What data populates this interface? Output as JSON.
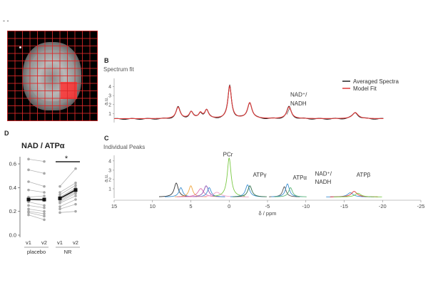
{
  "figure": {
    "top_marker": "- -",
    "panel_b_letter": "B",
    "panel_c_letter": "C",
    "panel_d_letter": "D"
  },
  "colors": {
    "averaged": "#222222",
    "model": "#e03a3a",
    "voxel": "#ff3232"
  },
  "chart_data": [
    {
      "id": "spectrum-fit",
      "type": "line",
      "title": "Spectrum fit",
      "ylabel": "a.u.",
      "xlim": [
        15,
        -20
      ],
      "ylim": [
        0,
        4.6
      ],
      "yticks": [
        1,
        2,
        3,
        4
      ],
      "legend": {
        "position": "top-right",
        "entries": [
          "Averaged Spectra",
          "Model Fit"
        ]
      },
      "annotations": [
        {
          "text_line1": "NAD⁺/",
          "text_line2": "NADH",
          "x": -7.5,
          "y": 2.2
        }
      ],
      "peaks": [
        {
          "ppm": 6.7,
          "h": 1.3,
          "w": 0.32
        },
        {
          "ppm": 5.0,
          "h": 0.75,
          "w": 0.3
        },
        {
          "ppm": 3.8,
          "h": 0.6,
          "w": 0.28
        },
        {
          "ppm": 3.0,
          "h": 0.95,
          "w": 0.3
        },
        {
          "ppm": 0.0,
          "h": 3.7,
          "w": 0.28
        },
        {
          "ppm": -2.6,
          "h": 1.8,
          "w": 0.35
        },
        {
          "ppm": -7.7,
          "h": 1.35,
          "w": 0.35
        },
        {
          "ppm": -16.3,
          "h": 0.7,
          "w": 0.45
        }
      ],
      "baseline": 0.4,
      "series": [
        {
          "name": "Averaged Spectra"
        },
        {
          "name": "Model Fit"
        }
      ]
    },
    {
      "id": "individual-peaks",
      "type": "line",
      "title": "Individual Peaks",
      "ylabel": "a.u.",
      "xlabel": "δ / ppm",
      "xlim": [
        15,
        -25
      ],
      "xticks": [
        15,
        10,
        5,
        0,
        -5,
        -10,
        -15,
        -20,
        -25
      ],
      "ylim": [
        0,
        4.6
      ],
      "yticks": [
        1,
        2,
        3,
        4
      ],
      "peak_labels": [
        {
          "text": "PCr",
          "x": 0.8,
          "y": 4.5
        },
        {
          "text": "ATPγ",
          "x": -3.1,
          "y": 2.3
        },
        {
          "text": "ATPα",
          "x": -8.3,
          "y": 2.0
        },
        {
          "text": "NAD⁺/",
          "x": -11.2,
          "y": 2.4
        },
        {
          "text": "NADH",
          "x": -11.2,
          "y": 1.55
        },
        {
          "text": "ATPβ",
          "x": -16.6,
          "y": 2.3
        }
      ],
      "series": [
        {
          "ppm": 6.9,
          "h": 1.5,
          "w": 0.32,
          "color": "#333333"
        },
        {
          "ppm": 6.3,
          "h": 1.0,
          "w": 0.3,
          "color": "#3b8fd1"
        },
        {
          "ppm": 5.0,
          "h": 1.2,
          "w": 0.3,
          "color": "#f0a640"
        },
        {
          "ppm": 3.7,
          "h": 0.9,
          "w": 0.45,
          "color": "#e06fae"
        },
        {
          "ppm": 3.0,
          "h": 1.2,
          "w": 0.35,
          "color": "#8a4fb3"
        },
        {
          "ppm": 2.6,
          "h": 1.0,
          "w": 0.3,
          "color": "#3b8fd1"
        },
        {
          "ppm": 1.6,
          "h": 0.5,
          "w": 0.6,
          "color": "#f1a0c8"
        },
        {
          "ppm": 0.0,
          "h": 4.2,
          "w": 0.3,
          "color": "#7ac943"
        },
        {
          "ppm": -2.4,
          "h": 1.3,
          "w": 0.32,
          "color": "#3b8fd1"
        },
        {
          "ppm": -2.7,
          "h": 1.2,
          "w": 0.32,
          "color": "#2f6e4a"
        },
        {
          "ppm": -7.2,
          "h": 1.1,
          "w": 0.28,
          "color": "#555555"
        },
        {
          "ppm": -7.6,
          "h": 1.4,
          "w": 0.3,
          "color": "#3b8fd1"
        },
        {
          "ppm": -8.0,
          "h": 1.0,
          "w": 0.3,
          "color": "#5cb57a"
        },
        {
          "ppm": -15.8,
          "h": 0.45,
          "w": 0.45,
          "color": "#3b8fd1"
        },
        {
          "ppm": -16.3,
          "h": 0.6,
          "w": 0.45,
          "color": "#e03a3a"
        },
        {
          "ppm": -16.8,
          "h": 0.4,
          "w": 0.45,
          "color": "#7ac943"
        }
      ]
    },
    {
      "id": "nad-atp-ratio",
      "type": "scatter",
      "title": "NAD / ATPα",
      "ylim": [
        0.0,
        0.6
      ],
      "yticks": [
        "0.0",
        "0.2",
        "0.4",
        "0.6"
      ],
      "ytick_values": [
        0.0,
        0.2,
        0.4,
        0.6
      ],
      "x_ticks": [
        "v1",
        "v2",
        "v1",
        "v2"
      ],
      "groups": [
        "placebo",
        "NR"
      ],
      "significance": "*",
      "placebo": {
        "v1": [
          0.64,
          0.55,
          0.45,
          0.38,
          0.32,
          0.3,
          0.28,
          0.25,
          0.22,
          0.2,
          0.19,
          0.17
        ],
        "v2": [
          0.62,
          0.52,
          0.41,
          0.36,
          0.33,
          0.29,
          0.25,
          0.23,
          0.2,
          0.18,
          0.16,
          0.13
        ],
        "mean": [
          0.3,
          0.3
        ]
      },
      "nr": {
        "v1": [
          0.41,
          0.36,
          0.34,
          0.32,
          0.31,
          0.3,
          0.29,
          0.28,
          0.27,
          0.24,
          0.22,
          0.19
        ],
        "v2": [
          0.56,
          0.44,
          0.42,
          0.4,
          0.39,
          0.37,
          0.36,
          0.35,
          0.33,
          0.3,
          0.26,
          0.2
        ],
        "mean": [
          0.31,
          0.38
        ]
      }
    }
  ]
}
